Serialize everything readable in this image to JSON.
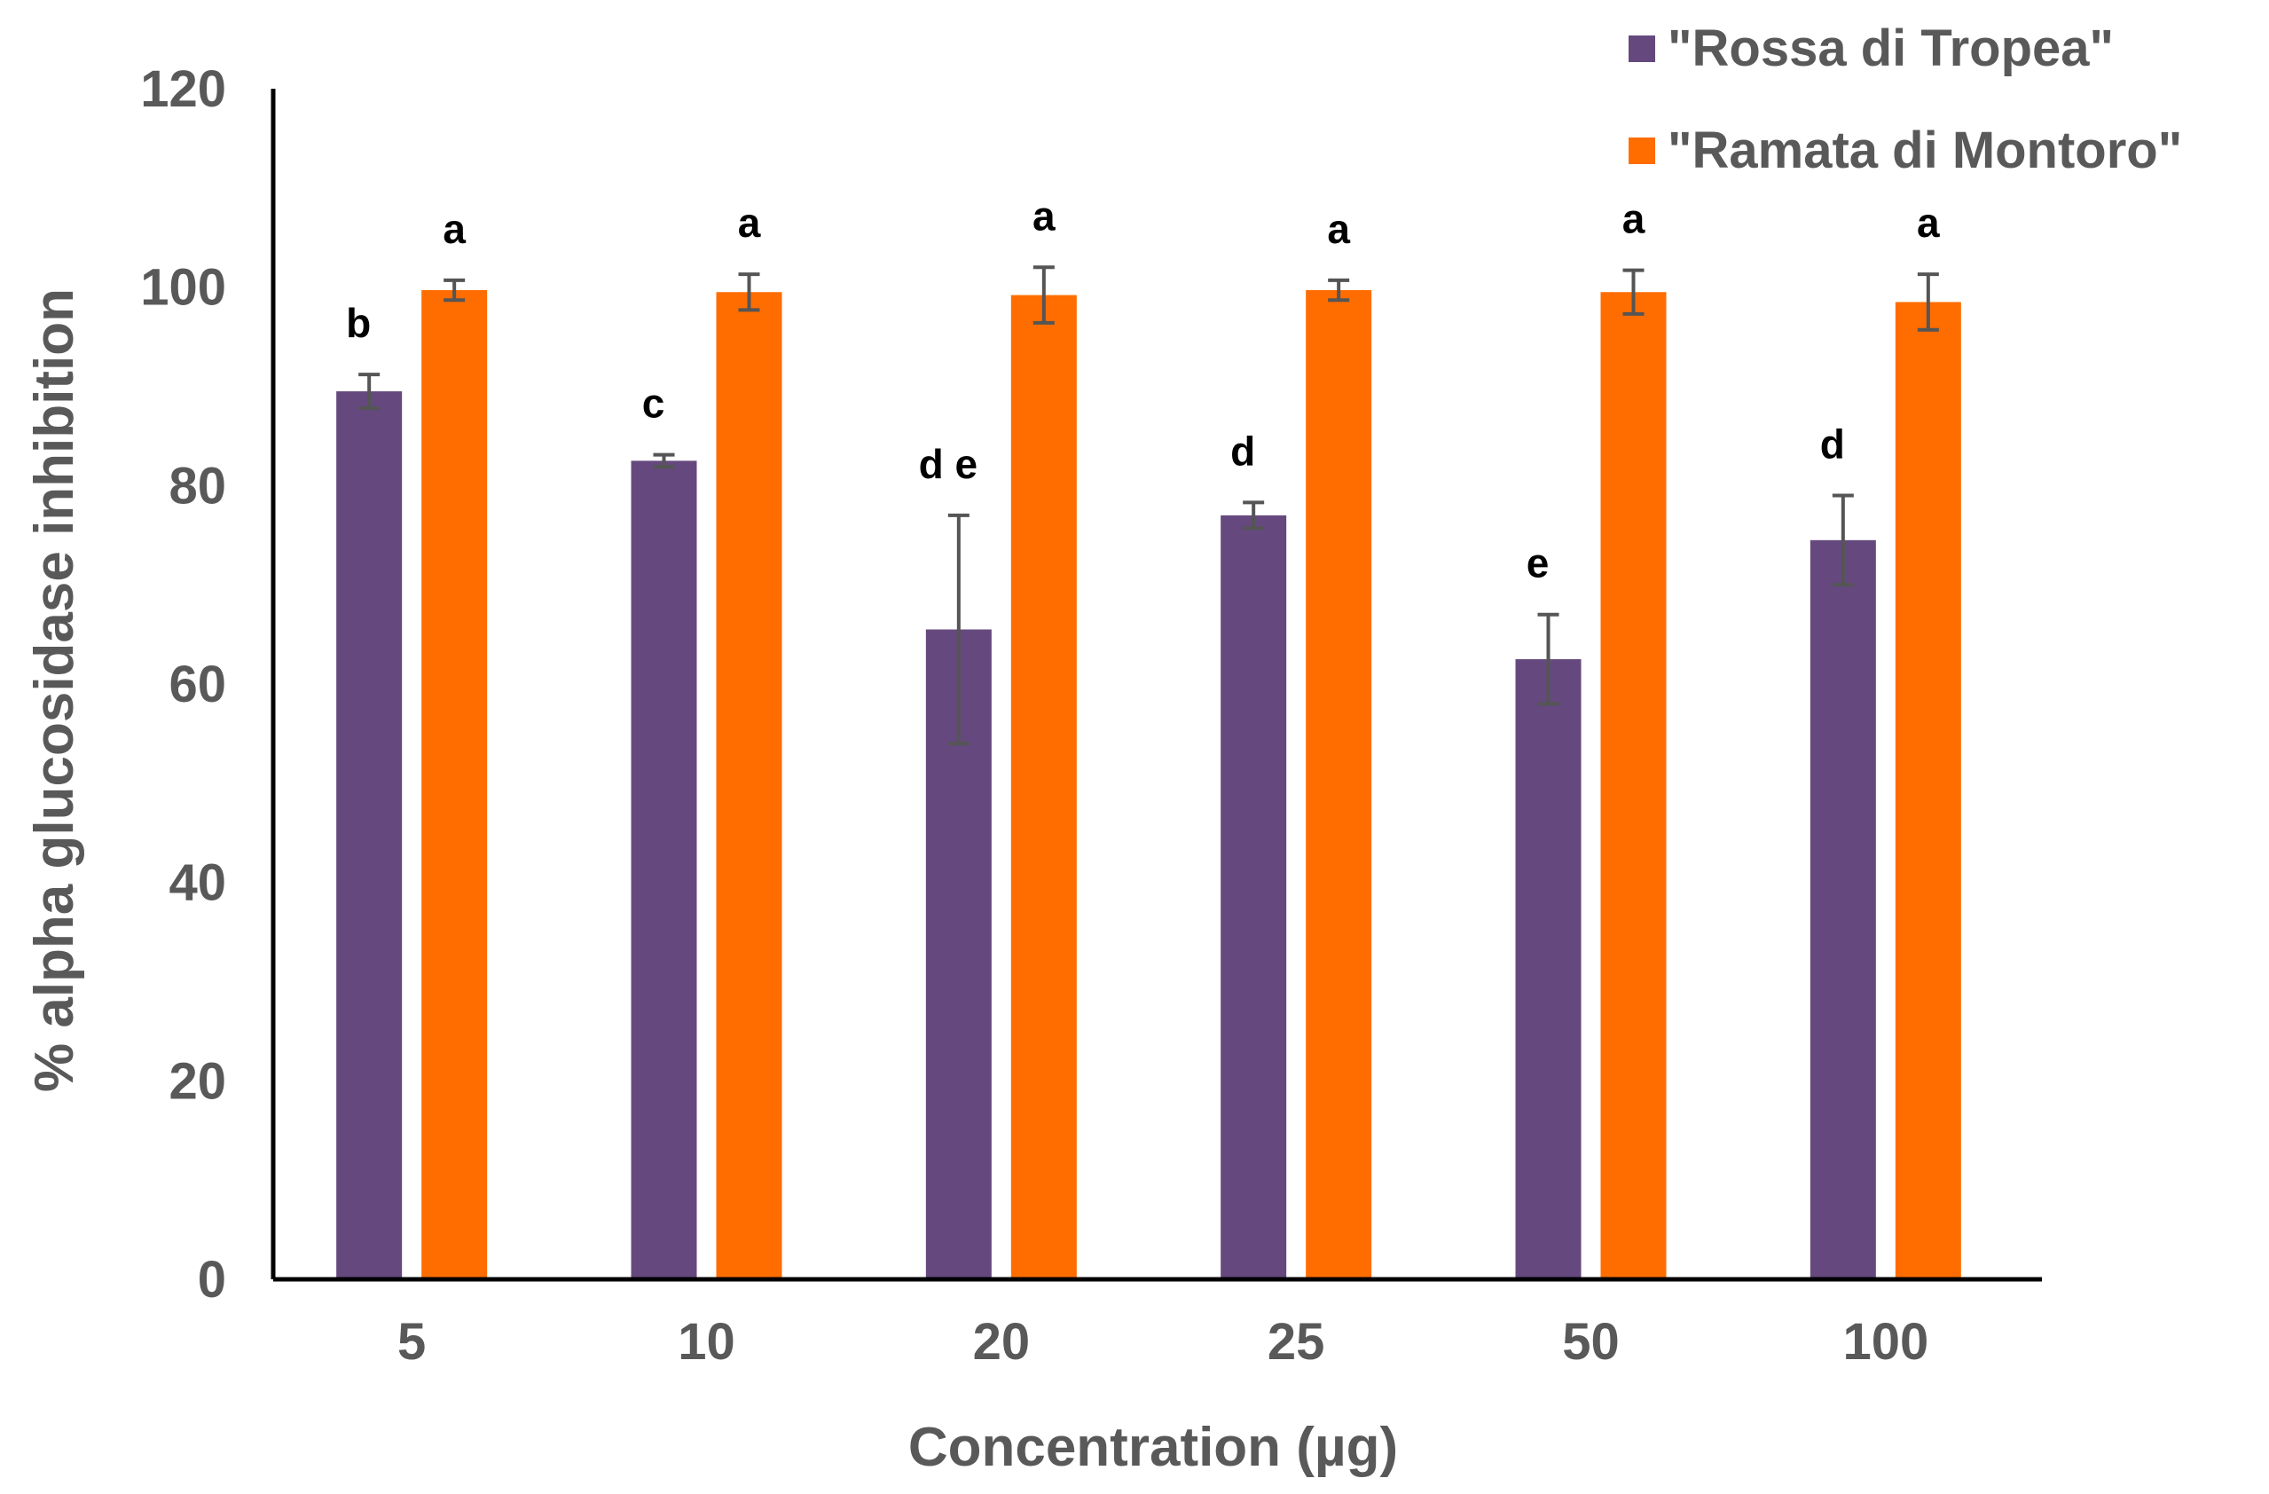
{
  "chart_data": {
    "type": "bar",
    "title": "",
    "xlabel": "Concentration  (µg)",
    "ylabel": "% alpha glucosidase inhibition",
    "categories": [
      "5",
      "10",
      "20",
      "25",
      "50",
      "100"
    ],
    "ylim": [
      0,
      120
    ],
    "yticks": [
      "0",
      "20",
      "40",
      "60",
      "80",
      "100",
      "120"
    ],
    "grid": false,
    "legend_position": "top-right",
    "series": [
      {
        "name": "\"Rossa di Tropea\"",
        "color": "#65497E",
        "values": [
          89.5,
          82.5,
          65.5,
          77,
          62.5,
          74.5
        ],
        "errors": [
          1.7,
          0.6,
          11.5,
          1.3,
          4.5,
          4.5
        ],
        "significance": [
          "b",
          "c",
          "d e",
          "d",
          "e",
          "d"
        ]
      },
      {
        "name": "\"Ramata di Montoro\"",
        "color": "#FF6D00",
        "values": [
          99.7,
          99.5,
          99.2,
          99.7,
          99.5,
          98.5
        ],
        "errors": [
          1.0,
          1.8,
          2.8,
          1.0,
          2.2,
          2.8
        ],
        "significance": [
          "a",
          "a",
          "a",
          "a",
          "a",
          "a"
        ]
      }
    ]
  }
}
